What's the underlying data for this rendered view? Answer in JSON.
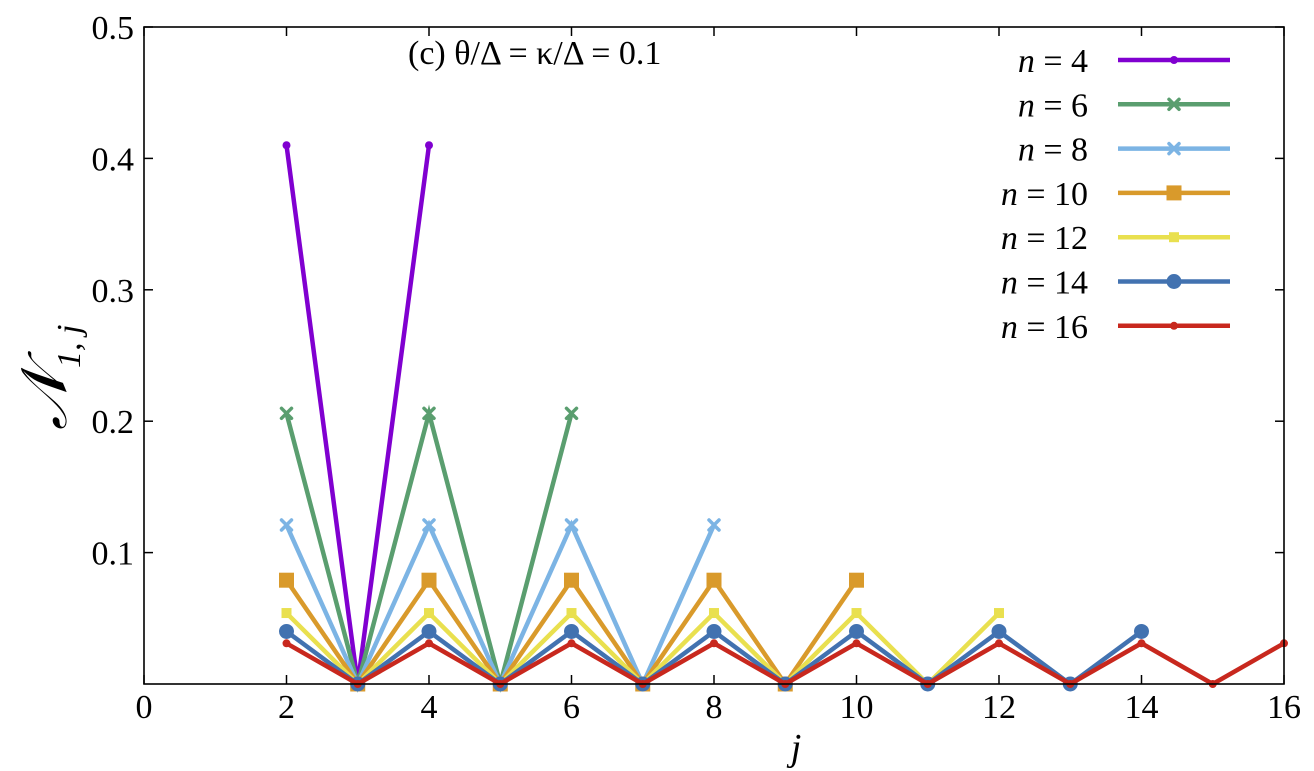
{
  "chart_data": {
    "type": "line",
    "annotation": "(c) θ/Δ = κ/Δ = 0.1",
    "xlabel": "j",
    "ylabel": {
      "main": "𝒩",
      "sub": "1, j"
    },
    "xlim": [
      0,
      16
    ],
    "ylim": [
      0,
      0.5
    ],
    "xticks": [
      0,
      2,
      4,
      6,
      8,
      10,
      12,
      14,
      16
    ],
    "xtick_labels": [
      "0",
      "2",
      "4",
      "6",
      "8",
      "10",
      "12",
      "14",
      "16"
    ],
    "yticks": [
      0.1,
      0.2,
      0.3,
      0.4,
      0.5
    ],
    "ytick_labels": [
      "0.1",
      "0.2",
      "0.3",
      "0.4",
      "0.5"
    ],
    "legend_position": "top-right",
    "series": [
      {
        "name": "n = 4",
        "n_label": "n",
        "eq_label": "= 4",
        "color": "#8000d0",
        "marker": "point",
        "x": [
          2,
          3,
          4
        ],
        "values": [
          0.41,
          0.0,
          0.41
        ]
      },
      {
        "name": "n = 6",
        "n_label": "n",
        "eq_label": "= 6",
        "color": "#5a9e6f",
        "marker": "x",
        "x": [
          2,
          3,
          4,
          5,
          6
        ],
        "values": [
          0.206,
          0.0,
          0.206,
          0.0,
          0.206
        ]
      },
      {
        "name": "n = 8",
        "n_label": "n",
        "eq_label": "= 8",
        "color": "#7cb4e4",
        "marker": "x",
        "x": [
          2,
          3,
          4,
          5,
          6,
          7,
          8
        ],
        "values": [
          0.121,
          0.0,
          0.121,
          0.0,
          0.121,
          0.0,
          0.121
        ]
      },
      {
        "name": "n = 10",
        "n_label": "n",
        "eq_label": "= 10",
        "color": "#d99a2b",
        "marker": "square",
        "x": [
          2,
          3,
          4,
          5,
          6,
          7,
          8,
          9,
          10
        ],
        "values": [
          0.079,
          0.0,
          0.079,
          0.0,
          0.079,
          0.0,
          0.079,
          0.0,
          0.079
        ]
      },
      {
        "name": "n = 12",
        "n_label": "n",
        "eq_label": "= 12",
        "color": "#e9e04f",
        "marker": "small-square",
        "x": [
          2,
          3,
          4,
          5,
          6,
          7,
          8,
          9,
          10,
          11,
          12
        ],
        "values": [
          0.054,
          0.0,
          0.054,
          0.0,
          0.054,
          0.0,
          0.054,
          0.0,
          0.054,
          0.0,
          0.054
        ]
      },
      {
        "name": "n = 14",
        "n_label": "n",
        "eq_label": "= 14",
        "color": "#4272b0",
        "marker": "circle",
        "x": [
          2,
          3,
          4,
          5,
          6,
          7,
          8,
          9,
          10,
          11,
          12,
          13,
          14
        ],
        "values": [
          0.04,
          0.0,
          0.04,
          0.0,
          0.04,
          0.0,
          0.04,
          0.0,
          0.04,
          0.0,
          0.04,
          0.0,
          0.04
        ]
      },
      {
        "name": "n = 16",
        "n_label": "n",
        "eq_label": "= 16",
        "color": "#c8281e",
        "marker": "point",
        "x": [
          2,
          3,
          4,
          5,
          6,
          7,
          8,
          9,
          10,
          11,
          12,
          13,
          14,
          15,
          16
        ],
        "values": [
          0.031,
          0.0,
          0.031,
          0.0,
          0.031,
          0.0,
          0.031,
          0.0,
          0.031,
          0.0,
          0.031,
          0.0,
          0.031,
          0.0,
          0.031
        ]
      }
    ]
  }
}
